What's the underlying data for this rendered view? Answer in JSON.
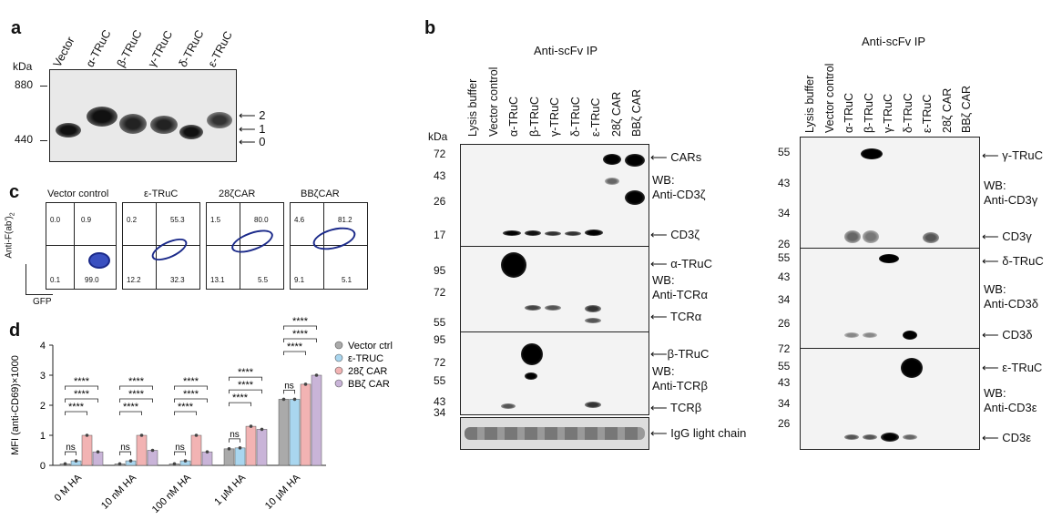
{
  "panel_a": {
    "letter": "a",
    "kda": "kDa",
    "markers": [
      "880",
      "440"
    ],
    "lanes": [
      "Vector",
      "α-TRuC",
      "β-TRuC",
      "γ-TRuC",
      "δ-TRuC",
      "ε-TRuC"
    ],
    "band_arrows": [
      "2",
      "1",
      "0"
    ]
  },
  "panel_b": {
    "letter": "b",
    "left": {
      "title": "Anti-scFv IP",
      "lanes": [
        "Lysis buffer",
        "Vector control",
        "α-TRuC",
        "β-TRuC",
        "γ-TRuC",
        "δ-TRuC",
        "ε-TRuC",
        "28ζ CAR",
        "BBζ CAR"
      ],
      "kda": "kDa",
      "blot1": {
        "markers": [
          "72",
          "43",
          "26",
          "17"
        ],
        "labels": [
          "CARs",
          "WB:",
          "Anti-CD3ζ",
          "CD3ζ"
        ]
      },
      "blot2": {
        "markers": [
          "95",
          "72",
          "55"
        ],
        "labels": [
          "α-TRuC",
          "WB:",
          "Anti-TCRα",
          "TCRα"
        ]
      },
      "blot3": {
        "markers": [
          "95",
          "72",
          "55",
          "43",
          "34"
        ],
        "labels": [
          "β-TRuC",
          "WB:",
          "Anti-TCRβ",
          "TCRβ"
        ]
      },
      "blot4": {
        "labels": [
          "IgG light chain"
        ]
      }
    },
    "right": {
      "title": "Anti-scFv IP",
      "lanes": [
        "Lysis buffer",
        "Vector control",
        "α-TRuC",
        "β-TRuC",
        "γ-TRuC",
        "δ-TRuC",
        "ε-TRuC",
        "28ζ CAR",
        "BBζ CAR"
      ],
      "blot1": {
        "markers": [
          "55",
          "43",
          "34",
          "26"
        ],
        "labels": [
          "γ-TRuC",
          "WB:",
          "Anti-CD3γ",
          "CD3γ"
        ]
      },
      "blot2": {
        "markers": [
          "55",
          "43",
          "34",
          "26"
        ],
        "labels": [
          "δ-TRuC",
          "WB:",
          "Anti-CD3δ",
          "CD3δ"
        ]
      },
      "blot3": {
        "markers": [
          "72",
          "55",
          "43",
          "34",
          "26"
        ],
        "labels": [
          "ε-TRuC",
          "WB:",
          "Anti-CD3ε",
          "CD3ε"
        ]
      }
    }
  },
  "panel_c": {
    "letter": "c",
    "titles": [
      "Vector control",
      "ε-TRuC",
      "28ζCAR",
      "BBζCAR"
    ],
    "quadrants": [
      [
        "0.0",
        "0.9",
        "0.1",
        "99.0"
      ],
      [
        "0.2",
        "55.3",
        "12.2",
        "32.3"
      ],
      [
        "1.5",
        "80.0",
        "13.1",
        "5.5"
      ],
      [
        "4.6",
        "81.2",
        "9.1",
        "5.1"
      ]
    ],
    "y_axis": "Anti-F(ab')",
    "y_sub": "2",
    "x_axis": "GFP"
  },
  "panel_d": {
    "letter": "d",
    "chart_data": {
      "type": "bar",
      "categories": [
        "0 M HA",
        "10 nM HA",
        "100 nM HA",
        "1 μM HA",
        "10 μM HA"
      ],
      "series": [
        {
          "name": "Vector ctrl",
          "color": "#aaaaaa",
          "values": [
            0.05,
            0.05,
            0.05,
            0.55,
            2.2
          ]
        },
        {
          "name": "ε-TRUC",
          "color": "#a9d6ef",
          "values": [
            0.15,
            0.15,
            0.15,
            0.58,
            2.2
          ]
        },
        {
          "name": "28ζ CAR",
          "color": "#f2b3b3",
          "values": [
            1.0,
            1.0,
            1.0,
            1.3,
            2.7
          ]
        },
        {
          "name": "BBζ CAR",
          "color": "#c9b4d8",
          "values": [
            0.45,
            0.5,
            0.45,
            1.2,
            3.0
          ]
        }
      ],
      "ylabel": "MFI (anti-CD69)×1000",
      "ylim": [
        0,
        4
      ],
      "yticks": [
        "0",
        "1",
        "2",
        "3",
        "4"
      ],
      "significance": [
        "ns",
        "****",
        "****",
        "****"
      ]
    }
  }
}
